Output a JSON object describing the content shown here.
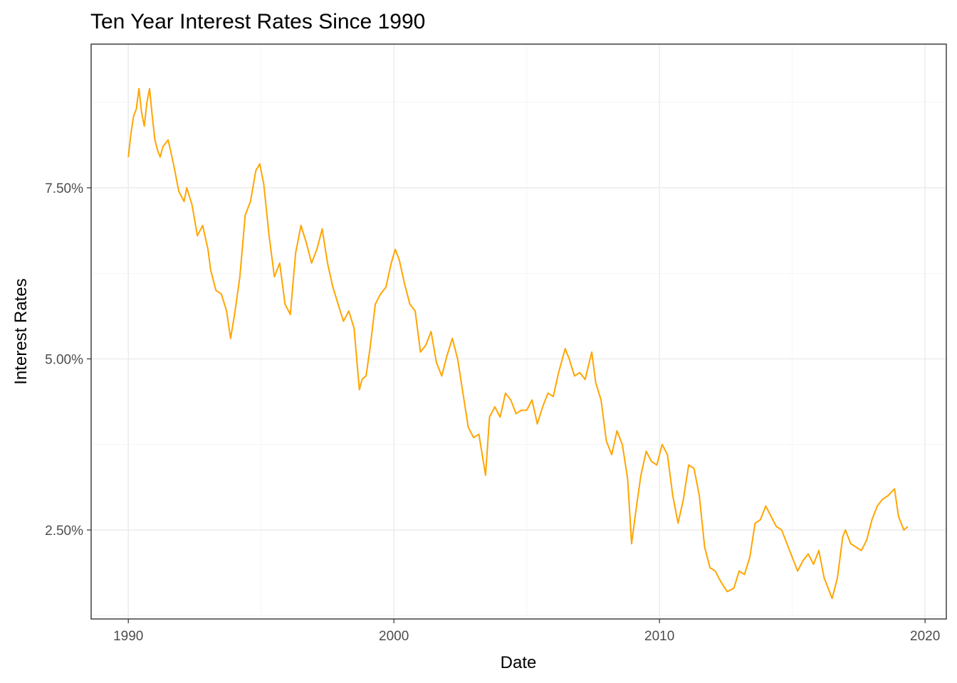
{
  "chart_data": {
    "type": "line",
    "title": "Ten Year Interest Rates Since 1990",
    "xlabel": "Date",
    "ylabel": "Interest Rates",
    "xlim": [
      1988.6,
      2020.8
    ],
    "ylim": [
      1.2,
      9.6
    ],
    "x_ticks": [
      1990,
      2000,
      2010,
      2020
    ],
    "x_tick_labels": [
      "1990",
      "2000",
      "2010",
      "2020"
    ],
    "y_ticks": [
      2.5,
      5.0,
      7.5
    ],
    "y_tick_labels": [
      "2.50%",
      "5.00%",
      "7.50%"
    ],
    "grid": true,
    "legend": "none",
    "line_color": "#FFA500",
    "series": [
      {
        "x": [
          1990.0,
          1990.1,
          1990.2,
          1990.3,
          1990.4,
          1990.5,
          1990.6,
          1990.7,
          1990.8,
          1990.9,
          1991.0,
          1991.1,
          1991.2,
          1991.3,
          1991.5,
          1991.7,
          1991.9,
          1992.1,
          1992.2,
          1992.4,
          1992.6,
          1992.8,
          1993.0,
          1993.1,
          1993.3,
          1993.5,
          1993.7,
          1993.85,
          1994.0,
          1994.2,
          1994.4,
          1994.6,
          1994.8,
          1994.95,
          1995.1,
          1995.3,
          1995.5,
          1995.7,
          1995.9,
          1996.1,
          1996.3,
          1996.5,
          1996.7,
          1996.9,
          1997.1,
          1997.3,
          1997.5,
          1997.7,
          1997.9,
          1998.1,
          1998.3,
          1998.5,
          1998.7,
          1998.8,
          1998.95,
          1999.1,
          1999.3,
          1999.5,
          1999.7,
          1999.9,
          2000.05,
          2000.2,
          2000.4,
          2000.6,
          2000.8,
          2001.0,
          2001.2,
          2001.4,
          2001.6,
          2001.8,
          2002.0,
          2002.2,
          2002.4,
          2002.6,
          2002.8,
          2003.0,
          2003.2,
          2003.45,
          2003.6,
          2003.8,
          2004.0,
          2004.2,
          2004.4,
          2004.6,
          2004.8,
          2005.0,
          2005.2,
          2005.4,
          2005.6,
          2005.8,
          2006.0,
          2006.2,
          2006.45,
          2006.6,
          2006.8,
          2007.0,
          2007.2,
          2007.45,
          2007.6,
          2007.8,
          2008.0,
          2008.2,
          2008.4,
          2008.6,
          2008.8,
          2008.95,
          2009.1,
          2009.3,
          2009.5,
          2009.7,
          2009.9,
          2010.1,
          2010.3,
          2010.5,
          2010.7,
          2010.9,
          2011.1,
          2011.3,
          2011.5,
          2011.7,
          2011.9,
          2012.1,
          2012.3,
          2012.55,
          2012.8,
          2013.0,
          2013.2,
          2013.4,
          2013.6,
          2013.8,
          2014.0,
          2014.2,
          2014.4,
          2014.6,
          2014.8,
          2015.0,
          2015.2,
          2015.4,
          2015.6,
          2015.8,
          2016.0,
          2016.2,
          2016.5,
          2016.7,
          2016.9,
          2017.0,
          2017.2,
          2017.4,
          2017.6,
          2017.8,
          2018.0,
          2018.2,
          2018.4,
          2018.6,
          2018.85,
          2019.0,
          2019.2,
          2019.35
        ],
        "values": [
          7.95,
          8.3,
          8.55,
          8.65,
          8.95,
          8.6,
          8.4,
          8.75,
          8.95,
          8.55,
          8.2,
          8.05,
          7.95,
          8.1,
          8.2,
          7.85,
          7.45,
          7.3,
          7.5,
          7.25,
          6.8,
          6.95,
          6.6,
          6.3,
          6.0,
          5.95,
          5.7,
          5.3,
          5.65,
          6.2,
          7.1,
          7.3,
          7.75,
          7.85,
          7.55,
          6.8,
          6.2,
          6.4,
          5.8,
          5.65,
          6.55,
          6.95,
          6.7,
          6.4,
          6.6,
          6.9,
          6.4,
          6.05,
          5.8,
          5.55,
          5.7,
          5.45,
          4.55,
          4.7,
          4.75,
          5.15,
          5.8,
          5.95,
          6.05,
          6.4,
          6.6,
          6.45,
          6.1,
          5.8,
          5.7,
          5.1,
          5.2,
          5.4,
          4.95,
          4.75,
          5.05,
          5.3,
          5.0,
          4.5,
          4.0,
          3.85,
          3.9,
          3.3,
          4.15,
          4.3,
          4.15,
          4.5,
          4.4,
          4.2,
          4.25,
          4.25,
          4.4,
          4.05,
          4.3,
          4.5,
          4.45,
          4.8,
          5.15,
          5.0,
          4.75,
          4.8,
          4.7,
          5.1,
          4.65,
          4.4,
          3.8,
          3.6,
          3.95,
          3.75,
          3.25,
          2.3,
          2.75,
          3.3,
          3.65,
          3.5,
          3.45,
          3.75,
          3.6,
          3.0,
          2.6,
          2.95,
          3.45,
          3.4,
          3.0,
          2.25,
          1.95,
          1.9,
          1.75,
          1.6,
          1.65,
          1.9,
          1.85,
          2.1,
          2.6,
          2.65,
          2.85,
          2.7,
          2.55,
          2.5,
          2.3,
          2.1,
          1.9,
          2.05,
          2.15,
          2.0,
          2.2,
          1.8,
          1.5,
          1.8,
          2.4,
          2.5,
          2.3,
          2.25,
          2.2,
          2.35,
          2.65,
          2.85,
          2.95,
          3.0,
          3.1,
          2.7,
          2.5,
          2.55
        ]
      }
    ]
  }
}
